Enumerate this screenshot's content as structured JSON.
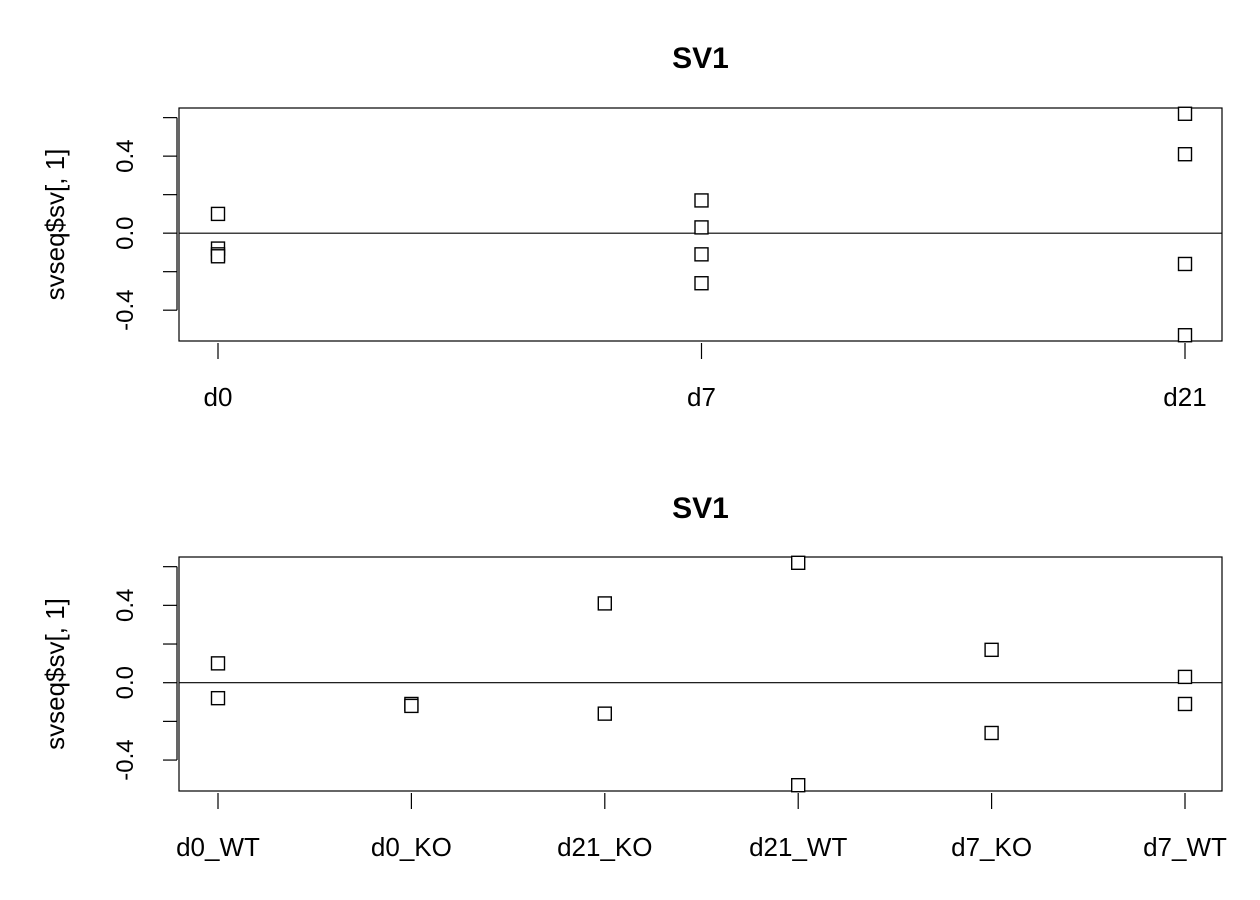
{
  "chart_data": [
    {
      "type": "scatter",
      "title": "SV1",
      "xlabel": "",
      "ylabel": "svseq$sv[, 1]",
      "categories": [
        "d0",
        "d7",
        "d21"
      ],
      "yticks": [
        -0.4,
        0.0,
        0.4
      ],
      "ytick_labels": [
        "-0.4",
        "0.0",
        "0.4"
      ],
      "ylim": [
        -0.56,
        0.65
      ],
      "reference_line": 0,
      "marker": "open-square",
      "points": [
        {
          "category": "d0",
          "y": 0.1
        },
        {
          "category": "d0",
          "y": -0.08
        },
        {
          "category": "d0",
          "y": -0.11
        },
        {
          "category": "d0",
          "y": -0.12
        },
        {
          "category": "d7",
          "y": 0.17
        },
        {
          "category": "d7",
          "y": 0.03
        },
        {
          "category": "d7",
          "y": -0.11
        },
        {
          "category": "d7",
          "y": -0.26
        },
        {
          "category": "d21",
          "y": 0.62
        },
        {
          "category": "d21",
          "y": 0.41
        },
        {
          "category": "d21",
          "y": -0.16
        },
        {
          "category": "d21",
          "y": -0.53
        }
      ]
    },
    {
      "type": "scatter",
      "title": "SV1",
      "xlabel": "",
      "ylabel": "svseq$sv[, 1]",
      "categories": [
        "d0_WT",
        "d0_KO",
        "d21_KO",
        "d21_WT",
        "d7_KO",
        "d7_WT"
      ],
      "yticks": [
        -0.4,
        0.0,
        0.4
      ],
      "ytick_labels": [
        "-0.4",
        "0.0",
        "0.4"
      ],
      "ylim": [
        -0.56,
        0.65
      ],
      "reference_line": 0,
      "marker": "open-square",
      "points": [
        {
          "category": "d0_WT",
          "y": 0.1
        },
        {
          "category": "d0_WT",
          "y": -0.08
        },
        {
          "category": "d0_KO",
          "y": -0.11
        },
        {
          "category": "d0_KO",
          "y": -0.12
        },
        {
          "category": "d21_KO",
          "y": 0.41
        },
        {
          "category": "d21_KO",
          "y": -0.16
        },
        {
          "category": "d21_WT",
          "y": 0.62
        },
        {
          "category": "d21_WT",
          "y": -0.53
        },
        {
          "category": "d7_KO",
          "y": 0.17
        },
        {
          "category": "d7_KO",
          "y": -0.26
        },
        {
          "category": "d7_WT",
          "y": 0.03
        },
        {
          "category": "d7_WT",
          "y": -0.11
        }
      ]
    }
  ]
}
